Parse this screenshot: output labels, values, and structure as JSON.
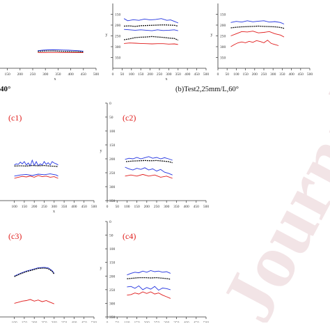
{
  "figure": {
    "caption_a_fragment": "40°",
    "caption_b": "(b)Test2,25mm/L,60°",
    "watermark": "Journal Pre-proofs",
    "watermark_color": "#f2e4e6",
    "label_color": "#e0211f",
    "colors": {
      "upper": "#2233e0",
      "lower": "#e01a1a",
      "center": "#111111",
      "axis": "#333333"
    }
  },
  "chart_data": [
    {
      "id": "a_fragment",
      "type": "line",
      "xlabel": "x",
      "ylabel": "",
      "xlim": [
        0,
        500
      ],
      "ylim": [
        0,
        400
      ],
      "xticks": [
        "0",
        "50",
        "100",
        "150",
        "200",
        "250",
        "300",
        "350",
        "400",
        "450",
        "500"
      ],
      "yticks": [],
      "series": [
        {
          "role": "upper",
          "x": [
            270,
            290,
            310,
            330,
            350,
            370,
            390,
            410,
            430,
            450
          ],
          "y": [
            285,
            282,
            280,
            279,
            280,
            281,
            282,
            283,
            285,
            288
          ]
        },
        {
          "role": "center",
          "x": [
            270,
            290,
            310,
            330,
            350,
            370,
            390,
            410,
            430,
            450
          ],
          "y": [
            290,
            288,
            287,
            287,
            288,
            289,
            290,
            291,
            292,
            294
          ]
        },
        {
          "role": "lower",
          "x": [
            270,
            290,
            310,
            330,
            350,
            370,
            390,
            410,
            430,
            450
          ],
          "y": [
            298,
            298,
            297,
            297,
            297,
            298,
            298,
            298,
            298,
            298
          ]
        }
      ]
    },
    {
      "id": "b1",
      "type": "line",
      "xlabel": "x",
      "ylabel": "y",
      "xlim": [
        0,
        500
      ],
      "ylim": [
        100,
        400
      ],
      "xticks": [
        "0",
        "50",
        "100",
        "150",
        "200",
        "250",
        "300",
        "350",
        "400",
        "450",
        "500"
      ],
      "yticks": [
        "150",
        "200",
        "250",
        "300",
        "350"
      ],
      "series": [
        {
          "role": "upper",
          "x": [
            60,
            80,
            110,
            140,
            170,
            200,
            230,
            260,
            290,
            310,
            330,
            350
          ],
          "y": [
            170,
            180,
            175,
            178,
            172,
            176,
            174,
            170,
            178,
            176,
            183,
            190
          ]
        },
        {
          "role": "center",
          "x": [
            60,
            90,
            120,
            150,
            180,
            210,
            240,
            270,
            300,
            330,
            350
          ],
          "y": [
            205,
            204,
            206,
            203,
            202,
            201,
            200,
            199,
            200,
            201,
            205
          ]
        },
        {
          "role": "upper",
          "x": [
            60,
            90,
            120,
            150,
            180,
            210,
            240,
            270,
            300,
            330,
            350
          ],
          "y": [
            220,
            222,
            224,
            222,
            224,
            226,
            222,
            225,
            224,
            222,
            226
          ]
        },
        {
          "role": "center",
          "x": [
            60,
            90,
            120,
            150,
            180,
            210,
            240,
            270,
            300,
            330,
            350
          ],
          "y": [
            268,
            264,
            258,
            256,
            255,
            253,
            255,
            257,
            260,
            262,
            270
          ]
        },
        {
          "role": "lower",
          "x": [
            60,
            90,
            120,
            150,
            180,
            210,
            240,
            270,
            300,
            330,
            350
          ],
          "y": [
            285,
            283,
            284,
            285,
            286,
            287,
            286,
            286,
            288,
            287,
            290
          ]
        }
      ]
    },
    {
      "id": "b2",
      "type": "line",
      "xlabel": "",
      "ylabel": "y",
      "xlim": [
        0,
        500
      ],
      "ylim": [
        100,
        400
      ],
      "xticks": [
        "0",
        "50",
        "100",
        "150",
        "200",
        "250",
        "300",
        "350",
        "400",
        "450",
        "500"
      ],
      "yticks": [
        "150",
        "200",
        "250",
        "300",
        "350"
      ],
      "series": [
        {
          "role": "upper",
          "x": [
            70,
            100,
            130,
            160,
            190,
            220,
            250,
            280,
            310,
            340,
            360
          ],
          "y": [
            188,
            183,
            186,
            180,
            185,
            182,
            180,
            186,
            184,
            188,
            195
          ]
        },
        {
          "role": "center",
          "x": [
            70,
            100,
            130,
            160,
            190,
            220,
            250,
            280,
            310,
            340,
            360
          ],
          "y": [
            213,
            210,
            208,
            207,
            206,
            205,
            206,
            207,
            208,
            211,
            215
          ]
        },
        {
          "role": "lower",
          "x": [
            70,
            100,
            130,
            160,
            190,
            220,
            250,
            280,
            310,
            340,
            360
          ],
          "y": [
            250,
            240,
            230,
            232,
            228,
            236,
            234,
            230,
            240,
            246,
            255
          ]
        },
        {
          "role": "lower",
          "x": [
            70,
            90,
            110,
            130,
            150,
            170,
            190,
            210,
            230,
            250,
            270,
            290,
            310,
            330
          ],
          "y": [
            300,
            290,
            282,
            278,
            282,
            275,
            280,
            272,
            276,
            282,
            270,
            285,
            290,
            295
          ]
        }
      ]
    },
    {
      "id": "c1",
      "type": "line",
      "xlabel": "x",
      "ylabel": "",
      "xlim": [
        0,
        500
      ],
      "ylim": [
        0,
        350
      ],
      "xticks": [
        "100",
        "150",
        "200",
        "250",
        "300",
        "350",
        "400",
        "450",
        "500"
      ],
      "yticks": [],
      "label": "(c1)",
      "series": [
        {
          "role": "upper",
          "x": [
            100,
            110,
            120,
            130,
            140,
            150,
            160,
            170,
            180,
            190,
            200,
            210,
            220,
            230,
            240,
            250,
            260,
            270,
            280,
            290,
            300,
            310,
            320
          ],
          "y": [
            222,
            218,
            220,
            212,
            218,
            210,
            222,
            215,
            225,
            205,
            224,
            210,
            225,
            218,
            222,
            210,
            220,
            214,
            222,
            210,
            215,
            218,
            222
          ]
        },
        {
          "role": "center",
          "x": [
            100,
            130,
            160,
            190,
            220,
            250,
            280,
            310,
            320
          ],
          "y": [
            226,
            225,
            226,
            224,
            225,
            224,
            226,
            227,
            228
          ]
        },
        {
          "role": "upper",
          "x": [
            100,
            130,
            160,
            190,
            220,
            250,
            280,
            310,
            320
          ],
          "y": [
            262,
            258,
            256,
            260,
            255,
            257,
            254,
            258,
            262
          ]
        },
        {
          "role": "lower",
          "x": [
            100,
            120,
            140,
            160,
            180,
            200,
            220,
            240,
            260,
            280,
            300,
            320
          ],
          "y": [
            270,
            266,
            263,
            265,
            262,
            266,
            260,
            264,
            262,
            266,
            264,
            270
          ]
        }
      ]
    },
    {
      "id": "c2",
      "type": "line",
      "xlabel": "",
      "ylabel": "y",
      "xlim": [
        0,
        500
      ],
      "ylim": [
        0,
        350
      ],
      "xticks": [
        "0",
        "50",
        "100",
        "150",
        "200",
        "250",
        "300",
        "350",
        "400",
        "450",
        "500"
      ],
      "yticks": [
        "0",
        "50",
        "100",
        "150",
        "200",
        "250",
        "300",
        "350"
      ],
      "label": "(c2)",
      "series": [
        {
          "role": "upper",
          "x": [
            90,
            110,
            130,
            150,
            170,
            190,
            210,
            230,
            250,
            270,
            290,
            310,
            330
          ],
          "y": [
            202,
            198,
            200,
            195,
            200,
            196,
            192,
            198,
            195,
            200,
            196,
            200,
            205
          ]
        },
        {
          "role": "center",
          "x": [
            95,
            130,
            160,
            190,
            220,
            250,
            280,
            310,
            330
          ],
          "y": [
            210,
            208,
            207,
            206,
            207,
            206,
            208,
            210,
            214
          ]
        },
        {
          "role": "upper",
          "x": [
            90,
            110,
            130,
            150,
            170,
            190,
            210,
            230,
            250,
            270,
            290,
            310,
            330
          ],
          "y": [
            230,
            236,
            240,
            234,
            238,
            232,
            240,
            236,
            244,
            238,
            248,
            252,
            258
          ]
        },
        {
          "role": "lower",
          "x": [
            90,
            120,
            150,
            180,
            210,
            240,
            270,
            300,
            330
          ],
          "y": [
            262,
            258,
            262,
            256,
            262,
            258,
            266,
            262,
            270
          ]
        }
      ]
    },
    {
      "id": "c3",
      "type": "line",
      "xlabel": "",
      "ylabel": "",
      "xlim": [
        0,
        500
      ],
      "ylim": [
        0,
        350
      ],
      "xticks": [
        "100",
        "150",
        "200",
        "250",
        "300",
        "350",
        "400",
        "450",
        "500"
      ],
      "yticks": [],
      "label": "(c3)",
      "series": [
        {
          "role": "upper",
          "x": [
            100,
            130,
            160,
            190,
            220,
            250,
            270,
            290,
            300
          ],
          "y": [
            200,
            190,
            182,
            176,
            170,
            168,
            170,
            180,
            190
          ]
        },
        {
          "role": "center",
          "x": [
            100,
            130,
            160,
            190,
            220,
            250,
            270,
            290,
            300
          ],
          "y": [
            202,
            192,
            184,
            178,
            172,
            171,
            173,
            183,
            193
          ]
        },
        {
          "role": "lower",
          "x": [
            100,
            120,
            140,
            160,
            180,
            200,
            220,
            240,
            260,
            280,
            300
          ],
          "y": [
            300,
            296,
            292,
            290,
            286,
            292,
            288,
            294,
            290,
            296,
            302
          ]
        }
      ]
    },
    {
      "id": "c4",
      "type": "line",
      "xlabel": "",
      "ylabel": "y",
      "xlim": [
        0,
        500
      ],
      "ylim": [
        0,
        350
      ],
      "xticks": [
        "0",
        "50",
        "100",
        "150",
        "200",
        "250",
        "300",
        "350",
        "400",
        "450",
        "500"
      ],
      "yticks": [
        "0",
        "50",
        "100",
        "150",
        "200",
        "250",
        "300",
        "350"
      ],
      "label": "(c4)",
      "series": [
        {
          "role": "upper",
          "x": [
            100,
            120,
            140,
            160,
            180,
            200,
            220,
            240,
            260,
            280,
            300,
            320
          ],
          "y": [
            196,
            190,
            186,
            188,
            182,
            186,
            180,
            184,
            182,
            186,
            184,
            190
          ]
        },
        {
          "role": "center",
          "x": [
            100,
            130,
            160,
            190,
            220,
            250,
            280,
            310,
            320
          ],
          "y": [
            210,
            208,
            206,
            206,
            207,
            206,
            208,
            210,
            212
          ]
        },
        {
          "role": "upper",
          "x": [
            100,
            120,
            140,
            160,
            180,
            200,
            220,
            240,
            260,
            280,
            300,
            320
          ],
          "y": [
            240,
            238,
            245,
            236,
            250,
            242,
            248,
            238,
            252,
            244,
            246,
            250
          ]
        },
        {
          "role": "lower",
          "x": [
            100,
            120,
            140,
            160,
            180,
            200,
            220,
            240,
            260,
            280,
            300,
            320
          ],
          "y": [
            270,
            268,
            262,
            266,
            258,
            264,
            258,
            266,
            262,
            270,
            276,
            282
          ]
        }
      ]
    }
  ]
}
